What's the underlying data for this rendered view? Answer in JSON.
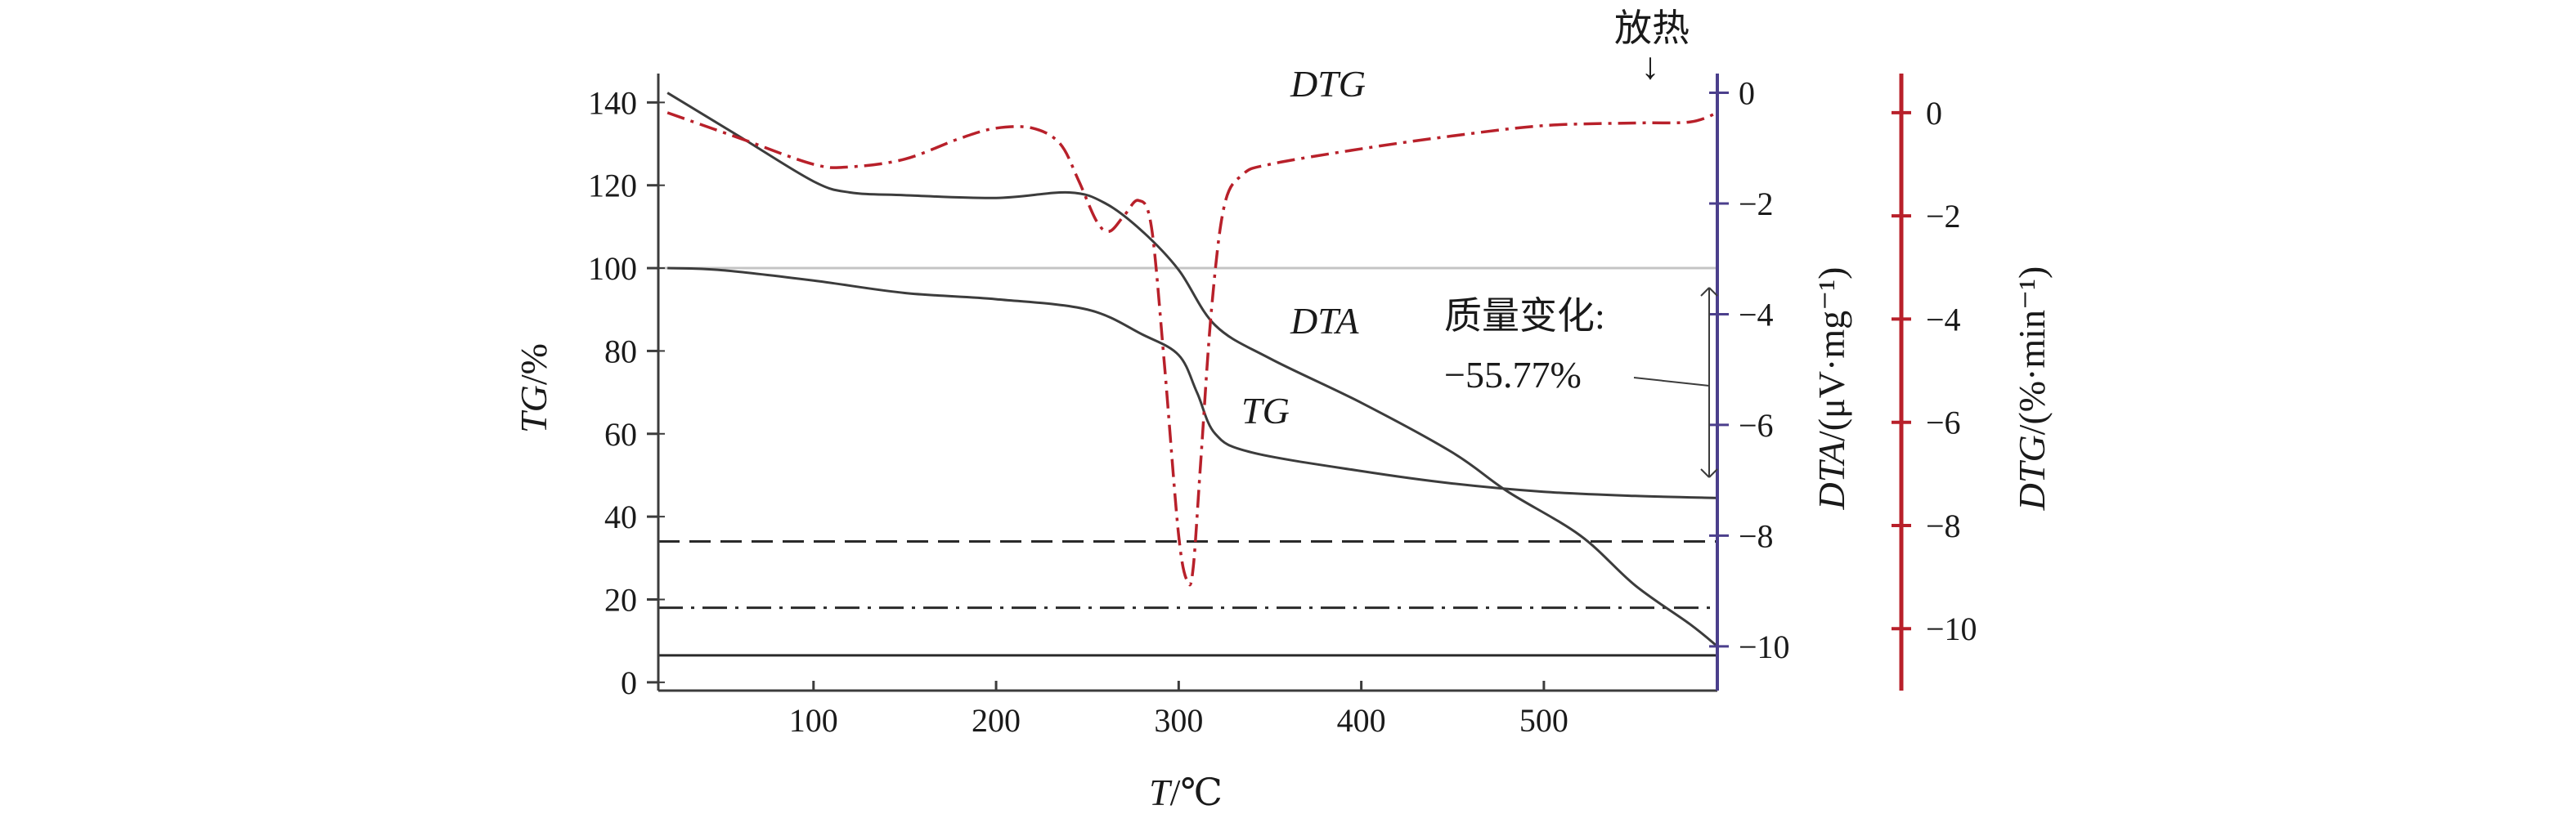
{
  "chart_data": {
    "type": "line",
    "x_axis": {
      "label_var": "T",
      "label_unit": "/℃",
      "range": [
        15,
        595
      ],
      "ticks": [
        100,
        200,
        300,
        400,
        500
      ]
    },
    "tg_axis": {
      "label_var": "TG",
      "label_unit": "/%",
      "range": [
        -2,
        145
      ],
      "ticks": [
        0,
        20,
        40,
        60,
        80,
        100,
        120,
        140
      ]
    },
    "dta_axis": {
      "label_var": "DTA",
      "label_unit": "/(μV·mg⁻¹)",
      "range": [
        -10.8,
        0.2
      ],
      "ticks": [
        0,
        -2,
        -4,
        -6,
        -8,
        -10
      ],
      "tick_labels": [
        "0",
        "−2",
        "−4",
        "−6",
        "−8",
        "−10"
      ],
      "color": "#4b3f8c"
    },
    "dtg_axis": {
      "label_var": "DTG",
      "label_unit": "/(%·min⁻¹)",
      "range": [
        -11.2,
        0.6
      ],
      "ticks": [
        0,
        -2,
        -4,
        -6,
        -8,
        -10
      ],
      "tick_labels": [
        "0",
        "−2",
        "−4",
        "−6",
        "−8",
        "−10"
      ],
      "color": "#b8202a"
    },
    "series": [
      {
        "name": "TG",
        "axis": "tg",
        "color": "#3c3c3c",
        "dash": "",
        "x": [
          20,
          50,
          100,
          150,
          200,
          250,
          280,
          300,
          310,
          320,
          340,
          400,
          450,
          500,
          550,
          595
        ],
        "y": [
          100,
          99.5,
          97,
          94,
          92.5,
          90,
          84,
          79,
          70,
          60,
          55.5,
          51,
          48,
          46,
          45,
          44.5
        ]
      },
      {
        "name": "DTA",
        "axis": "dta",
        "color": "#3c3c3c",
        "dash": "",
        "x": [
          20,
          60,
          100,
          120,
          150,
          200,
          240,
          260,
          280,
          300,
          320,
          350,
          400,
          450,
          480,
          520,
          550,
          580,
          595
        ],
        "y": [
          0,
          -0.8,
          -1.6,
          -1.8,
          -1.85,
          -1.9,
          -1.8,
          -2.0,
          -2.5,
          -3.2,
          -4.2,
          -4.8,
          -5.6,
          -6.5,
          -7.2,
          -8.0,
          -8.9,
          -9.6,
          -10.0
        ]
      },
      {
        "name": "DTG",
        "axis": "dtg",
        "color": "#b8202a",
        "dash": "22 8 4 8",
        "x": [
          20,
          60,
          100,
          120,
          150,
          180,
          200,
          220,
          235,
          245,
          255,
          262,
          270,
          278,
          285,
          292,
          300,
          305,
          308,
          312,
          318,
          325,
          335,
          350,
          400,
          450,
          500,
          550,
          580,
          595
        ],
        "y": [
          0,
          -0.5,
          -1.0,
          -1.05,
          -0.9,
          -0.5,
          -0.3,
          -0.3,
          -0.6,
          -1.3,
          -2.1,
          -2.3,
          -2.0,
          -1.7,
          -2.2,
          -4.8,
          -8.2,
          -9.1,
          -8.8,
          -6.8,
          -3.8,
          -1.8,
          -1.2,
          -1.0,
          -0.7,
          -0.45,
          -0.25,
          -0.2,
          -0.18,
          0.0
        ]
      }
    ],
    "reference_lines": [
      {
        "axis": "tg",
        "y": 100,
        "style": "solid",
        "color": "#c4c4c4"
      },
      {
        "axis": "tg",
        "y": 34,
        "style": "dashed",
        "color": "#2a2a2a"
      },
      {
        "axis": "tg",
        "y": 18,
        "style": "dashdot",
        "color": "#2a2a2a"
      },
      {
        "axis": "tg",
        "y": 6.5,
        "style": "solid",
        "color": "#2a2a2a"
      }
    ],
    "annotations": {
      "dtg_label": "DTG",
      "dta_label": "DTA",
      "tg_label": "TG",
      "exo_label": "放热",
      "exo_arrow": "↓",
      "mass_change_title": "质量变化:",
      "mass_change_value": "−55.77%"
    }
  }
}
